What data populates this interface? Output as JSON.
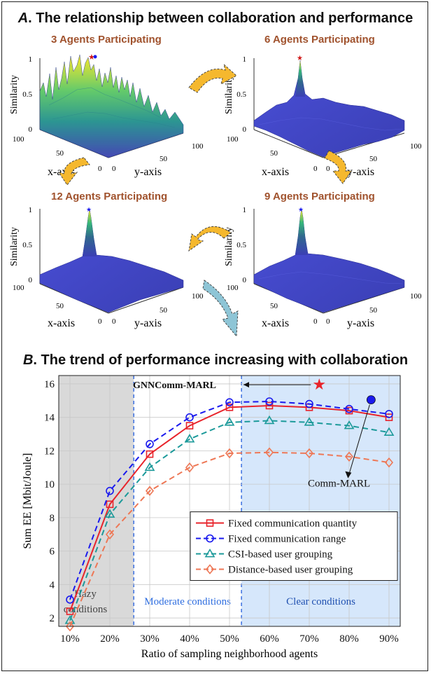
{
  "section_a_prefix": "A",
  "section_a_title": ". The relationship between collaboration and performance",
  "section_b_prefix": "B",
  "section_b_title": ". The trend of performance increasing with collaboration",
  "surface_panels": [
    {
      "title": "3 Agents Participating",
      "zlabel": "Similarity",
      "xlabel": "x-axis",
      "ylabel": "y-axis",
      "ticks_z": [
        "1",
        "0.5",
        "0"
      ],
      "ticks_x": [
        "100",
        "50",
        "0"
      ],
      "ticks_y": [
        "0",
        "50",
        "100"
      ]
    },
    {
      "title": "6 Agents Participating",
      "zlabel": "Similarity",
      "xlabel": "x-axis",
      "ylabel": "y-axis",
      "ticks_z": [
        "1",
        "0.5",
        "0"
      ],
      "ticks_x": [
        "100",
        "50",
        "0"
      ],
      "ticks_y": [
        "0",
        "50",
        "100"
      ]
    },
    {
      "title": "12 Agents Participating",
      "zlabel": "Similarity",
      "xlabel": "x-axis",
      "ylabel": "y-axis",
      "ticks_z": [
        "1",
        "0.5",
        "0"
      ],
      "ticks_x": [
        "100",
        "50",
        "0"
      ],
      "ticks_y": [
        "0",
        "50",
        "100"
      ]
    },
    {
      "title": "9 Agents Participating",
      "zlabel": "Similarity",
      "xlabel": "x-axis",
      "ylabel": "y-axis",
      "ticks_z": [
        "1",
        "0.5",
        "0"
      ],
      "ticks_x": [
        "100",
        "50",
        "0"
      ],
      "ticks_y": [
        "0",
        "50",
        "100"
      ]
    }
  ],
  "chart_data": {
    "type": "line",
    "xlabel": "Ratio of sampling neighborhood agents",
    "ylabel": "Sum EE [Mbit/Joule]",
    "x": [
      "10%",
      "20%",
      "30%",
      "40%",
      "50%",
      "60%",
      "70%",
      "80%",
      "90%"
    ],
    "ylim": [
      1.5,
      16.5
    ],
    "yticks": [
      2,
      4,
      6,
      8,
      10,
      12,
      14,
      16
    ],
    "grid": true,
    "legend_position": "center-right",
    "series": [
      {
        "name": "Fixed communication quantity",
        "values": [
          2.4,
          8.8,
          11.8,
          13.5,
          14.6,
          14.7,
          14.6,
          14.4,
          14.0
        ],
        "color": "#e8242b",
        "dash": "solid",
        "marker": "square"
      },
      {
        "name": "Fixed communication range",
        "values": [
          3.1,
          9.6,
          12.4,
          14.0,
          14.9,
          14.95,
          14.8,
          14.5,
          14.2
        ],
        "color": "#1a1aee",
        "dash": "dash",
        "marker": "circle"
      },
      {
        "name": "CSI-based user grouping",
        "values": [
          1.85,
          8.2,
          11.0,
          12.7,
          13.7,
          13.8,
          13.7,
          13.5,
          13.1
        ],
        "color": "#1c9a9a",
        "dash": "dash",
        "marker": "triangle"
      },
      {
        "name": "Distance-based user grouping",
        "values": [
          1.5,
          7.0,
          9.6,
          11.0,
          11.85,
          11.9,
          11.85,
          11.65,
          11.3
        ],
        "color": "#ee7755",
        "dash": "dash",
        "marker": "diamond"
      }
    ],
    "regions": [
      {
        "label": "Hazy\nconditions",
        "from": 0,
        "to": 1.6,
        "color": "#d9d9d9"
      },
      {
        "label": "Moderate conditions",
        "from": 1.6,
        "to": 4.3,
        "color": "#ffffff"
      },
      {
        "label": "Clear conditions",
        "from": 4.3,
        "to": 8.0,
        "color": "#d6e7fb"
      }
    ],
    "annotations": [
      {
        "text": "GNNComm-MARL",
        "marker": "star",
        "color": "#e8242b"
      },
      {
        "text": "Comm-MARL",
        "marker": "circle",
        "color": "#1a1aee"
      }
    ]
  }
}
